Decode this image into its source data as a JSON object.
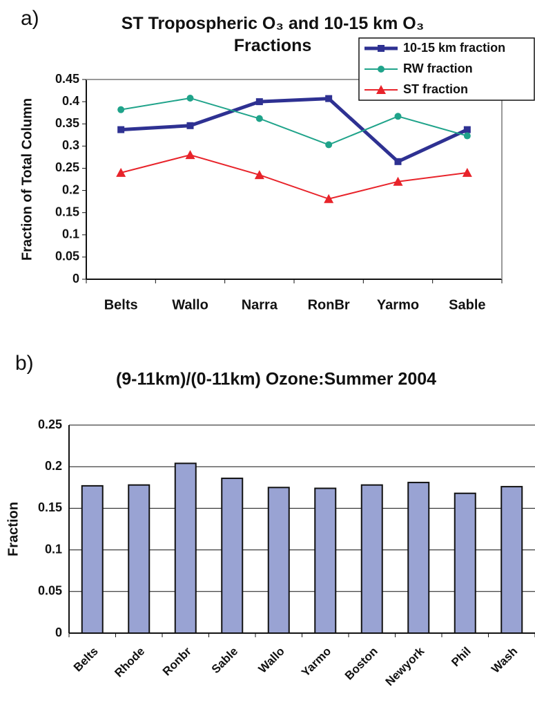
{
  "chart_data": [
    {
      "type": "line",
      "panel_label": "a)",
      "title": "ST Tropospheric O₃ and 10-15 km O₃ Fractions",
      "y_label": "Fraction of Total Column",
      "categories": [
        "Belts",
        "Wallo",
        "Narra",
        "RonBr",
        "Yarmo",
        "Sable"
      ],
      "series": [
        {
          "name": "10-15 km fraction",
          "color": "#2e3192",
          "marker": "square",
          "values": [
            0.337,
            0.346,
            0.4,
            0.407,
            0.265,
            0.337
          ]
        },
        {
          "name": "RW fraction",
          "color": "#1fa38a",
          "marker": "circle",
          "values": [
            0.382,
            0.408,
            0.362,
            0.303,
            0.367,
            0.323
          ]
        },
        {
          "name": "ST fraction",
          "color": "#e8232a",
          "marker": "triangle",
          "values": [
            0.24,
            0.28,
            0.235,
            0.181,
            0.22,
            0.24
          ]
        }
      ],
      "ylim": [
        0,
        0.45
      ],
      "yticks": [
        0,
        0.05,
        0.1,
        0.15,
        0.2,
        0.25,
        0.3,
        0.35,
        0.4,
        0.45
      ],
      "grid": false,
      "legend": "top-right"
    },
    {
      "type": "bar",
      "panel_label": "b)",
      "title": "(9-11km)/(0-11km) Ozone:Summer 2004",
      "y_label": "Fraction",
      "categories": [
        "Belts",
        "Rhode",
        "Ronbr",
        "Sable",
        "Wallo",
        "Yarmo",
        "Boston",
        "Newyork",
        "Phil",
        "Wash"
      ],
      "values": [
        0.177,
        0.178,
        0.204,
        0.186,
        0.175,
        0.174,
        0.178,
        0.181,
        0.168,
        0.176
      ],
      "color": "#99a3d3",
      "ylim": [
        0,
        0.25
      ],
      "yticks": [
        0,
        0.05,
        0.1,
        0.15,
        0.2,
        0.25
      ],
      "grid": true
    }
  ]
}
